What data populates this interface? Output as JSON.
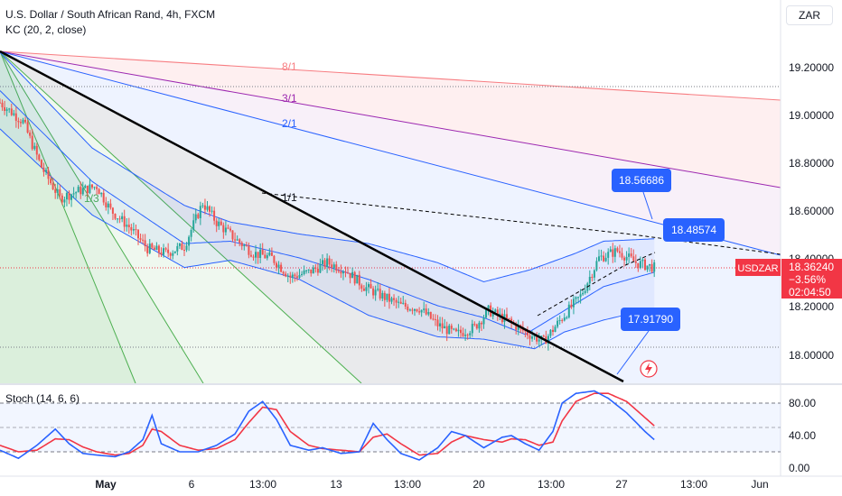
{
  "header": {
    "title": "U.S. Dollar / South African Rand, 4h, FXCM",
    "indicator": "KC (20, 2, close)",
    "stoch_label": "Stoch (14, 6, 6)",
    "currency": "ZAR"
  },
  "colors": {
    "up": "#26a69a",
    "down": "#ef5350",
    "kc": "#2962ff",
    "stoch_k": "#2962ff",
    "stoch_d": "#f23645",
    "trend": "#000000",
    "fan_red": "#f77c80",
    "fan_purple": "#9c27b0",
    "fan_blue": "#2962ff",
    "fan_green": "#4caf50",
    "callout": "#2962ff",
    "price_label": "#f23645"
  },
  "price_axis": {
    "ticks": [
      "19.20000",
      "19.00000",
      "18.80000",
      "18.60000",
      "18.40000",
      "18.20000",
      "18.00000"
    ]
  },
  "stoch_axis": {
    "ticks": [
      "80.00",
      "40.00",
      "0.00"
    ]
  },
  "time_axis": {
    "labels": [
      "May",
      "6",
      "13:00",
      "13",
      "13:00",
      "20",
      "13:00",
      "27",
      "13:00",
      "Jun"
    ]
  },
  "current_price": {
    "symbol": "USDZAR",
    "price": "18.36240",
    "change": "−3.56%",
    "countdown": "02:04:50"
  },
  "fan_labels": [
    "8/1",
    "3/1",
    "2/1",
    "1/1",
    "1/3"
  ],
  "callouts": [
    "18.56686",
    "18.48574",
    "17.91790"
  ],
  "chart_data": {
    "type": "candlestick",
    "title": "U.S. Dollar / South African Rand, 4h, FXCM",
    "timeframe": "4h",
    "price_range": [
      17.85,
      19.32
    ],
    "stoch_range": [
      0,
      100
    ],
    "current_close": 18.3624,
    "pct_change": -3.56,
    "horizontal_levels": [
      19.12,
      18.36,
      18.03
    ],
    "close_path": [
      [
        0,
        19.05
      ],
      [
        10,
        18.97
      ],
      [
        18,
        18.78
      ],
      [
        26,
        18.65
      ],
      [
        34,
        18.68
      ],
      [
        42,
        18.7
      ],
      [
        48,
        18.6
      ],
      [
        56,
        18.53
      ],
      [
        64,
        18.44
      ],
      [
        72,
        18.42
      ],
      [
        80,
        18.45
      ],
      [
        88,
        18.63
      ],
      [
        94,
        18.55
      ],
      [
        102,
        18.48
      ],
      [
        110,
        18.42
      ],
      [
        118,
        18.4
      ],
      [
        126,
        18.32
      ],
      [
        134,
        18.34
      ],
      [
        142,
        18.38
      ],
      [
        150,
        18.35
      ],
      [
        158,
        18.28
      ],
      [
        166,
        18.24
      ],
      [
        174,
        18.2
      ],
      [
        182,
        18.19
      ],
      [
        190,
        18.12
      ],
      [
        198,
        18.08
      ],
      [
        206,
        18.11
      ],
      [
        212,
        18.18
      ],
      [
        220,
        18.14
      ],
      [
        228,
        18.09
      ],
      [
        236,
        18.05
      ],
      [
        244,
        18.15
      ],
      [
        252,
        18.24
      ],
      [
        260,
        18.4
      ],
      [
        268,
        18.43
      ],
      [
        276,
        18.38
      ],
      [
        284,
        18.36
      ]
    ],
    "keltner_upper": [
      [
        0,
        19.26
      ],
      [
        40,
        18.86
      ],
      [
        80,
        18.62
      ],
      [
        100,
        18.55
      ],
      [
        130,
        18.5
      ],
      [
        160,
        18.46
      ],
      [
        190,
        18.38
      ],
      [
        210,
        18.3
      ],
      [
        230,
        18.35
      ],
      [
        250,
        18.42
      ],
      [
        262,
        18.47
      ],
      [
        284,
        18.48
      ]
    ],
    "keltner_middle": [
      [
        0,
        19.1
      ],
      [
        40,
        18.72
      ],
      [
        80,
        18.46
      ],
      [
        100,
        18.47
      ],
      [
        130,
        18.4
      ],
      [
        160,
        18.31
      ],
      [
        190,
        18.2
      ],
      [
        210,
        18.15
      ],
      [
        228,
        18.08
      ],
      [
        245,
        18.18
      ],
      [
        262,
        18.28
      ],
      [
        284,
        18.34
      ]
    ],
    "keltner_lower": [
      [
        0,
        18.94
      ],
      [
        40,
        18.58
      ],
      [
        80,
        18.36
      ],
      [
        100,
        18.39
      ],
      [
        130,
        18.31
      ],
      [
        160,
        18.16
      ],
      [
        190,
        18.07
      ],
      [
        210,
        18.06
      ],
      [
        232,
        18.02
      ],
      [
        245,
        18.09
      ],
      [
        262,
        18.14
      ],
      [
        284,
        18.19
      ]
    ],
    "stoch_k": [
      [
        0,
        22
      ],
      [
        8,
        12
      ],
      [
        16,
        28
      ],
      [
        24,
        48
      ],
      [
        30,
        30
      ],
      [
        36,
        18
      ],
      [
        42,
        16
      ],
      [
        50,
        14
      ],
      [
        56,
        20
      ],
      [
        62,
        35
      ],
      [
        66,
        65
      ],
      [
        70,
        30
      ],
      [
        78,
        20
      ],
      [
        86,
        20
      ],
      [
        94,
        28
      ],
      [
        102,
        42
      ],
      [
        108,
        70
      ],
      [
        114,
        82
      ],
      [
        120,
        60
      ],
      [
        126,
        28
      ],
      [
        134,
        22
      ],
      [
        140,
        25
      ],
      [
        148,
        18
      ],
      [
        156,
        20
      ],
      [
        162,
        55
      ],
      [
        168,
        35
      ],
      [
        174,
        18
      ],
      [
        182,
        10
      ],
      [
        190,
        25
      ],
      [
        196,
        45
      ],
      [
        202,
        40
      ],
      [
        210,
        25
      ],
      [
        218,
        38
      ],
      [
        222,
        40
      ],
      [
        228,
        30
      ],
      [
        234,
        22
      ],
      [
        240,
        45
      ],
      [
        244,
        80
      ],
      [
        250,
        92
      ],
      [
        258,
        95
      ],
      [
        264,
        86
      ],
      [
        272,
        68
      ],
      [
        280,
        45
      ],
      [
        284,
        35
      ]
    ],
    "stoch_d": [
      [
        0,
        28
      ],
      [
        8,
        20
      ],
      [
        16,
        22
      ],
      [
        24,
        36
      ],
      [
        30,
        35
      ],
      [
        36,
        26
      ],
      [
        42,
        20
      ],
      [
        50,
        16
      ],
      [
        56,
        18
      ],
      [
        62,
        28
      ],
      [
        66,
        48
      ],
      [
        70,
        45
      ],
      [
        78,
        28
      ],
      [
        86,
        22
      ],
      [
        94,
        24
      ],
      [
        102,
        35
      ],
      [
        108,
        56
      ],
      [
        114,
        75
      ],
      [
        120,
        72
      ],
      [
        126,
        45
      ],
      [
        134,
        28
      ],
      [
        140,
        24
      ],
      [
        148,
        22
      ],
      [
        156,
        20
      ],
      [
        162,
        38
      ],
      [
        168,
        42
      ],
      [
        174,
        30
      ],
      [
        182,
        16
      ],
      [
        190,
        18
      ],
      [
        196,
        32
      ],
      [
        202,
        40
      ],
      [
        210,
        35
      ],
      [
        218,
        32
      ],
      [
        222,
        36
      ],
      [
        228,
        35
      ],
      [
        234,
        28
      ],
      [
        240,
        32
      ],
      [
        244,
        58
      ],
      [
        250,
        82
      ],
      [
        258,
        92
      ],
      [
        264,
        92
      ],
      [
        272,
        82
      ],
      [
        280,
        62
      ],
      [
        284,
        52
      ]
    ]
  }
}
